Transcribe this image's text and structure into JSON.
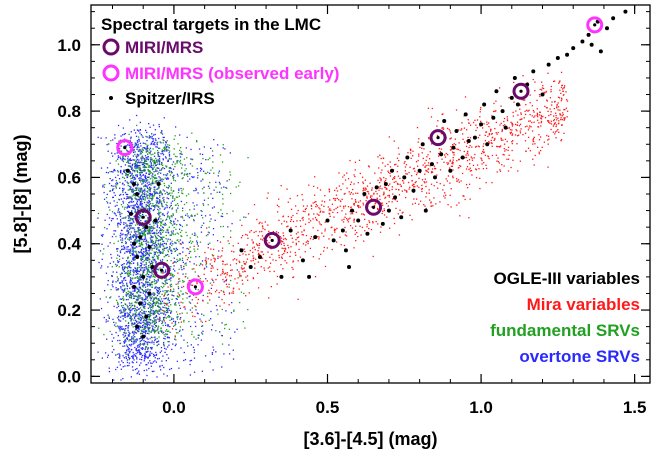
{
  "chart_data": {
    "type": "scatter",
    "title": "Spectral targets in the LMC",
    "xlabel": "[3.6]-[4.5] (mag)",
    "ylabel": "[5.8]-[8] (mag)",
    "xlim": [
      -0.27,
      1.55
    ],
    "ylim": [
      -0.02,
      1.12
    ],
    "xticks": [
      "0.0",
      "0.5",
      "1.0",
      "1.5"
    ],
    "yticks": [
      "0.0",
      "0.2",
      "0.4",
      "0.6",
      "0.8",
      "1.0"
    ],
    "grid": false,
    "legend_top_left": [
      {
        "label": "MIRI/MRS",
        "marker": "ring",
        "color": "#6a0a6a"
      },
      {
        "label": "MIRI/MRS (observed early)",
        "marker": "ring",
        "color": "#ff33ff"
      },
      {
        "label": "Spitzer/IRS",
        "marker": "dot",
        "color": "#000000"
      }
    ],
    "legend_bottom_right": {
      "header": "OGLE-III variables",
      "header_color": "#000000",
      "entries": [
        {
          "label": "Mira variables",
          "color": "#ff1a1a"
        },
        {
          "label": "fundamental SRVs",
          "color": "#22a022"
        },
        {
          "label": "overtone SRVs",
          "color": "#2a2aff"
        }
      ]
    },
    "series": [
      {
        "name": "MIRI/MRS",
        "color": "#6a0a6a",
        "points": [
          [
            -0.1,
            0.48
          ],
          [
            -0.04,
            0.32
          ],
          [
            0.32,
            0.41
          ],
          [
            0.65,
            0.51
          ],
          [
            0.86,
            0.72
          ],
          [
            1.13,
            0.86
          ]
        ]
      },
      {
        "name": "MIRI/MRS (observed early)",
        "color": "#ff33ff",
        "points": [
          [
            -0.16,
            0.69
          ],
          [
            0.07,
            0.27
          ],
          [
            1.37,
            1.06
          ]
        ]
      },
      {
        "name": "Spitzer/IRS",
        "color": "#000000",
        "points": [
          [
            -0.15,
            0.62
          ],
          [
            -0.13,
            0.58
          ],
          [
            -0.12,
            0.55
          ],
          [
            -0.1,
            0.5
          ],
          [
            -0.09,
            0.45
          ],
          [
            -0.11,
            0.42
          ],
          [
            -0.08,
            0.39
          ],
          [
            -0.12,
            0.36
          ],
          [
            -0.07,
            0.33
          ],
          [
            -0.1,
            0.3
          ],
          [
            -0.13,
            0.27
          ],
          [
            -0.08,
            0.25
          ],
          [
            -0.11,
            0.22
          ],
          [
            -0.09,
            0.18
          ],
          [
            -0.12,
            0.15
          ],
          [
            -0.1,
            0.12
          ],
          [
            -0.13,
            0.4
          ],
          [
            -0.06,
            0.47
          ],
          [
            -0.05,
            0.58
          ],
          [
            -0.14,
            0.49
          ],
          [
            0.22,
            0.38
          ],
          [
            0.28,
            0.36
          ],
          [
            0.35,
            0.3
          ],
          [
            0.38,
            0.44
          ],
          [
            0.42,
            0.35
          ],
          [
            0.46,
            0.42
          ],
          [
            0.5,
            0.47
          ],
          [
            0.55,
            0.44
          ],
          [
            0.56,
            0.38
          ],
          [
            0.58,
            0.5
          ],
          [
            0.6,
            0.47
          ],
          [
            0.62,
            0.55
          ],
          [
            0.63,
            0.43
          ],
          [
            0.66,
            0.57
          ],
          [
            0.68,
            0.46
          ],
          [
            0.7,
            0.5
          ],
          [
            0.71,
            0.62
          ],
          [
            0.72,
            0.54
          ],
          [
            0.74,
            0.48
          ],
          [
            0.75,
            0.6
          ],
          [
            0.76,
            0.66
          ],
          [
            0.78,
            0.56
          ],
          [
            0.8,
            0.62
          ],
          [
            0.81,
            0.7
          ],
          [
            0.82,
            0.5
          ],
          [
            0.84,
            0.64
          ],
          [
            0.85,
            0.6
          ],
          [
            0.87,
            0.67
          ],
          [
            0.88,
            0.77
          ],
          [
            0.9,
            0.62
          ],
          [
            0.91,
            0.69
          ],
          [
            0.92,
            0.74
          ],
          [
            0.94,
            0.66
          ],
          [
            0.95,
            0.79
          ],
          [
            0.96,
            0.71
          ],
          [
            0.98,
            0.72
          ],
          [
            1.0,
            0.76
          ],
          [
            1.01,
            0.82
          ],
          [
            1.02,
            0.7
          ],
          [
            1.04,
            0.78
          ],
          [
            1.05,
            0.86
          ],
          [
            1.07,
            0.8
          ],
          [
            1.08,
            0.75
          ],
          [
            1.1,
            0.84
          ],
          [
            1.11,
            0.9
          ],
          [
            1.12,
            0.82
          ],
          [
            1.15,
            0.88
          ],
          [
            1.17,
            0.92
          ],
          [
            1.2,
            0.85
          ],
          [
            1.22,
            0.94
          ],
          [
            1.25,
            0.96
          ],
          [
            1.28,
            0.97
          ],
          [
            1.3,
            0.99
          ],
          [
            1.33,
            1.01
          ],
          [
            1.35,
            1.03
          ],
          [
            1.38,
            1.07
          ],
          [
            1.41,
            1.05
          ],
          [
            1.43,
            1.08
          ],
          [
            1.47,
            1.1
          ],
          [
            1.39,
            0.98
          ],
          [
            1.36,
            1.0
          ],
          [
            0.25,
            0.33
          ],
          [
            0.44,
            0.3
          ],
          [
            0.52,
            0.41
          ],
          [
            0.57,
            0.33
          ],
          [
            0.69,
            0.58
          ]
        ]
      }
    ],
    "scatter_clouds": [
      {
        "name": "overtone SRVs",
        "color": "#2a2aff",
        "count": 2600,
        "x_center": -0.11,
        "x_spread": 0.05,
        "y_min": 0.04,
        "y_max": 0.72
      },
      {
        "name": "fundamental SRVs",
        "color": "#22a022",
        "count": 1400,
        "x_center": -0.08,
        "x_spread": 0.06,
        "y_min": 0.12,
        "y_max": 0.7
      },
      {
        "name": "Mira variables",
        "color": "#ff1a1a",
        "count": 1500,
        "x_start": -0.05,
        "x_end": 1.28
      }
    ]
  }
}
